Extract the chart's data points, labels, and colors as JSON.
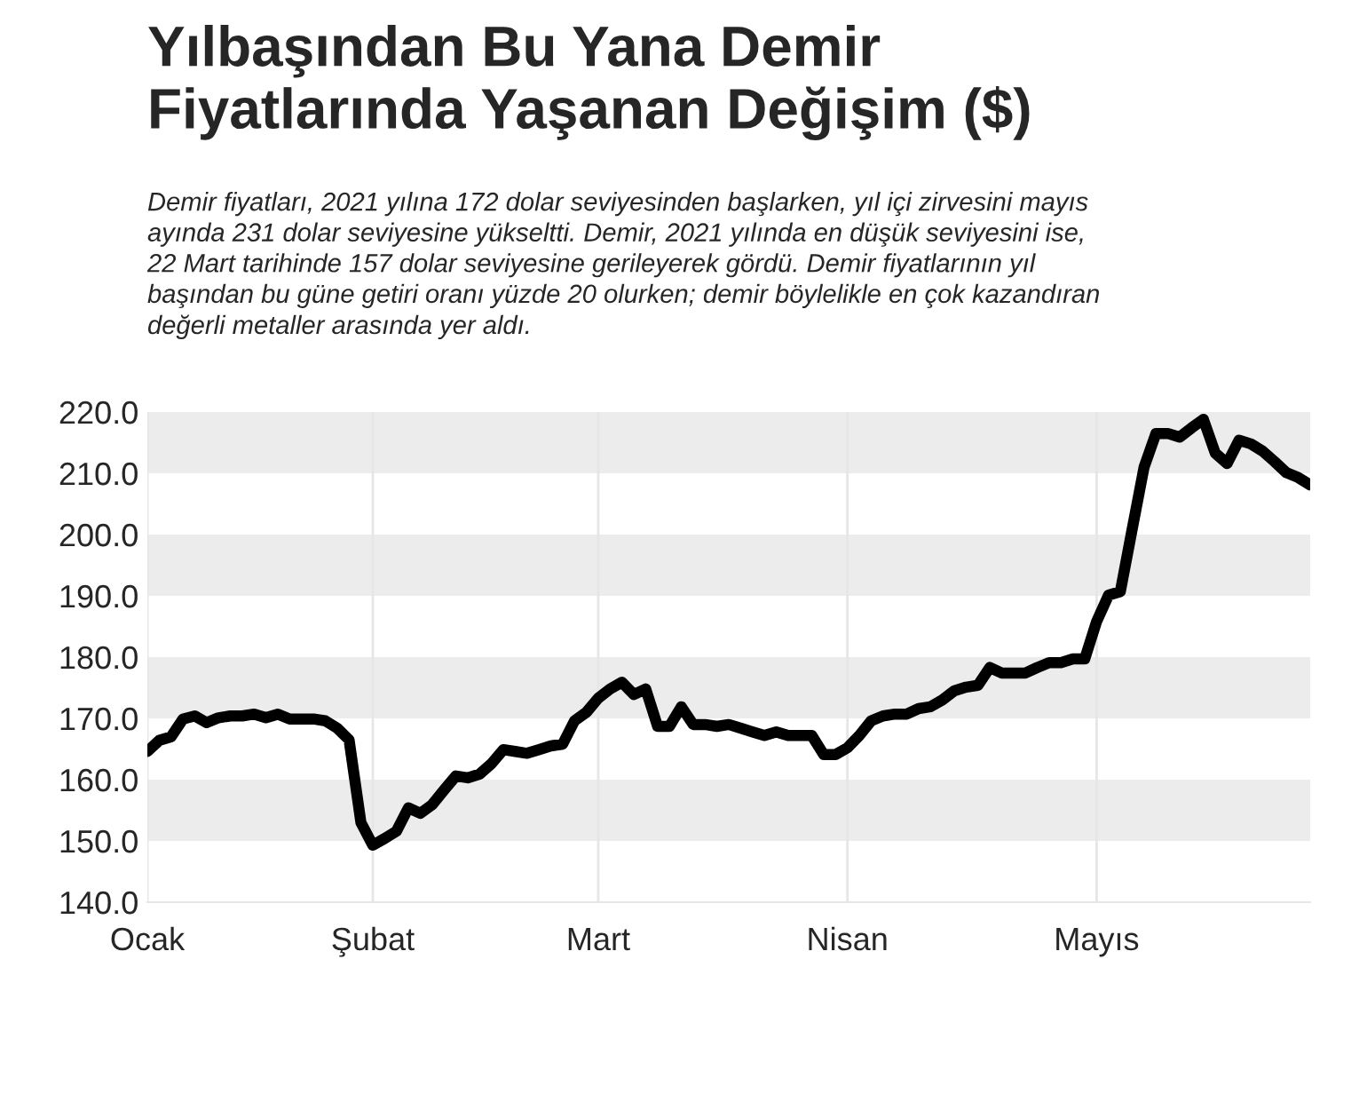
{
  "chart_data": {
    "type": "line",
    "title": "Yılbaşından Bu Yana Demir\nFiyatlarında Yaşanan Değişim ($)",
    "subtitle": "Demir fiyatları, 2021 yılına 172 dolar seviyesinden başlarken, yıl içi zirvesini mayıs\nayında 231 dolar seviyesine yükseltti. Demir, 2021 yılında en düşük seviyesini ise,\n22 Mart tarihinde 157 dolar seviyesine gerileyerek gördü. Demir fiyatlarının yıl\nbaşından bu güne getiri oranı yüzde 20 olurken; demir böylelikle en çok kazandıran\ndeğerli metaller arasında yer aldı.",
    "categories": [
      "Ocak",
      null,
      null,
      null,
      null,
      null,
      null,
      null,
      null,
      null,
      null,
      null,
      null,
      null,
      null,
      null,
      null,
      null,
      null,
      "Şubat",
      null,
      null,
      null,
      null,
      null,
      null,
      null,
      null,
      null,
      null,
      null,
      null,
      null,
      null,
      null,
      null,
      null,
      null,
      "Mart",
      null,
      null,
      null,
      null,
      null,
      null,
      null,
      null,
      null,
      null,
      null,
      null,
      null,
      null,
      null,
      null,
      null,
      null,
      null,
      null,
      "Nisan",
      null,
      null,
      null,
      null,
      null,
      null,
      null,
      null,
      null,
      null,
      null,
      null,
      null,
      null,
      null,
      null,
      null,
      null,
      null,
      null,
      "Mayıs",
      null,
      null,
      null,
      null,
      null,
      null,
      null,
      null,
      null,
      null,
      null,
      null,
      null,
      null,
      null,
      null,
      null,
      null
    ],
    "series": [
      {
        "color": "#000000",
        "values": [
          164.6,
          166.4,
          167.0,
          169.9,
          170.4,
          169.3,
          170.1,
          170.4,
          170.4,
          170.7,
          170.1,
          170.7,
          169.9,
          169.9,
          169.9,
          169.6,
          168.4,
          166.5,
          153.0,
          149.3,
          150.4,
          151.6,
          155.4,
          154.5,
          155.9,
          158.3,
          160.6,
          160.3,
          160.9,
          162.6,
          164.9,
          164.6,
          164.3,
          164.9,
          165.5,
          165.8,
          169.6,
          171.0,
          173.3,
          174.8,
          175.9,
          173.9,
          174.8,
          168.7,
          168.7,
          171.9,
          169.0,
          169.0,
          168.7,
          169.0,
          168.4,
          167.8,
          167.2,
          167.8,
          167.2,
          167.2,
          167.2,
          164.1,
          164.1,
          165.2,
          167.2,
          169.6,
          170.4,
          170.7,
          170.7,
          171.6,
          171.9,
          173.0,
          174.5,
          175.1,
          175.4,
          178.3,
          177.4,
          177.4,
          177.4,
          178.3,
          179.1,
          179.1,
          179.7,
          179.7,
          185.8,
          190.1,
          190.7,
          200.9,
          211.0,
          216.5,
          216.5,
          215.9,
          217.4,
          218.8,
          213.3,
          211.6,
          215.4,
          214.8,
          213.6,
          211.9,
          210.1,
          209.3,
          208.1
        ]
      }
    ],
    "ylim": [
      140,
      220
    ],
    "yticks": [
      {
        "value": 140,
        "label": "140.0"
      },
      {
        "value": 150,
        "label": "150.0"
      },
      {
        "value": 160,
        "label": "160.0"
      },
      {
        "value": 170,
        "label": "170.0"
      },
      {
        "value": 180,
        "label": "180.0"
      },
      {
        "value": 190,
        "label": "190.0"
      },
      {
        "value": 200,
        "label": "200.0"
      },
      {
        "value": 210,
        "label": "210.0"
      },
      {
        "value": 220,
        "label": "220.0"
      }
    ],
    "bands": [
      {
        "axis": "y",
        "from": 150,
        "to": 160,
        "color": "#ececec"
      },
      {
        "axis": "y",
        "from": 170,
        "to": 180,
        "color": "#ececec"
      },
      {
        "axis": "y",
        "from": 190,
        "to": 200,
        "color": "#ececec"
      },
      {
        "axis": "y",
        "from": 210,
        "to": 220,
        "color": "#ececec"
      }
    ],
    "grid": "x",
    "legend": false,
    "marker": "none",
    "line_style": "solid"
  }
}
